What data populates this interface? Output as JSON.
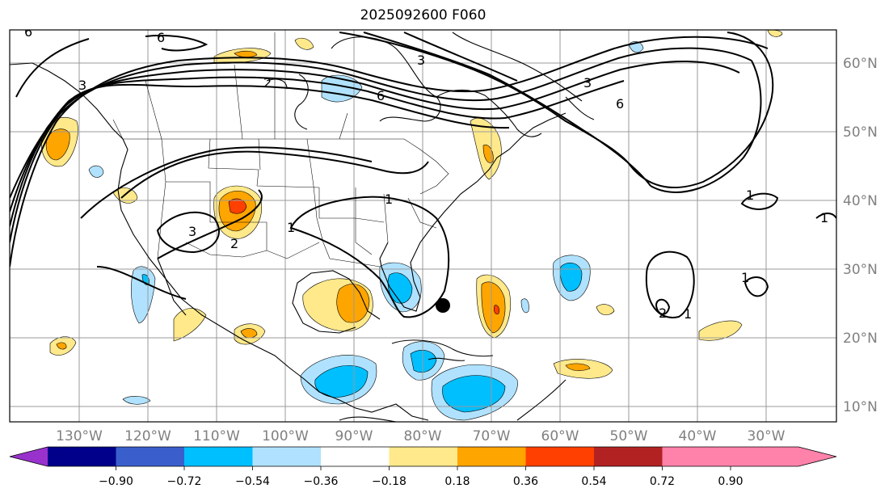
{
  "title": "2025092600 F060",
  "map": {
    "lon_labels": [
      "130°W",
      "120°W",
      "110°W",
      "100°W",
      "90°W",
      "80°W",
      "70°W",
      "60°W",
      "50°W",
      "40°W",
      "30°W"
    ],
    "lat_labels": [
      "60°N",
      "50°N",
      "40°N",
      "30°N",
      "20°N",
      "10°N"
    ],
    "contour_labels": [
      "6",
      "3",
      "6",
      "6",
      "3",
      "3",
      "2",
      "1",
      "2",
      "1",
      "3",
      "6",
      "1",
      "1",
      "2",
      "1",
      "1"
    ],
    "marker": "storm-center-dot"
  },
  "colorbar": {
    "tick_labels": [
      "−0.90",
      "−0.72",
      "−0.54",
      "−0.36",
      "−0.18",
      "0.18",
      "0.36",
      "0.54",
      "0.72",
      "0.90"
    ],
    "colors": [
      "#9932CC",
      "#00008B",
      "#3A5FCD",
      "#00BFFF",
      "#B0E2FF",
      "#FFFFFF",
      "#FFE98A",
      "#FFA500",
      "#FF4000",
      "#B22222",
      "#FF82AB"
    ]
  }
}
